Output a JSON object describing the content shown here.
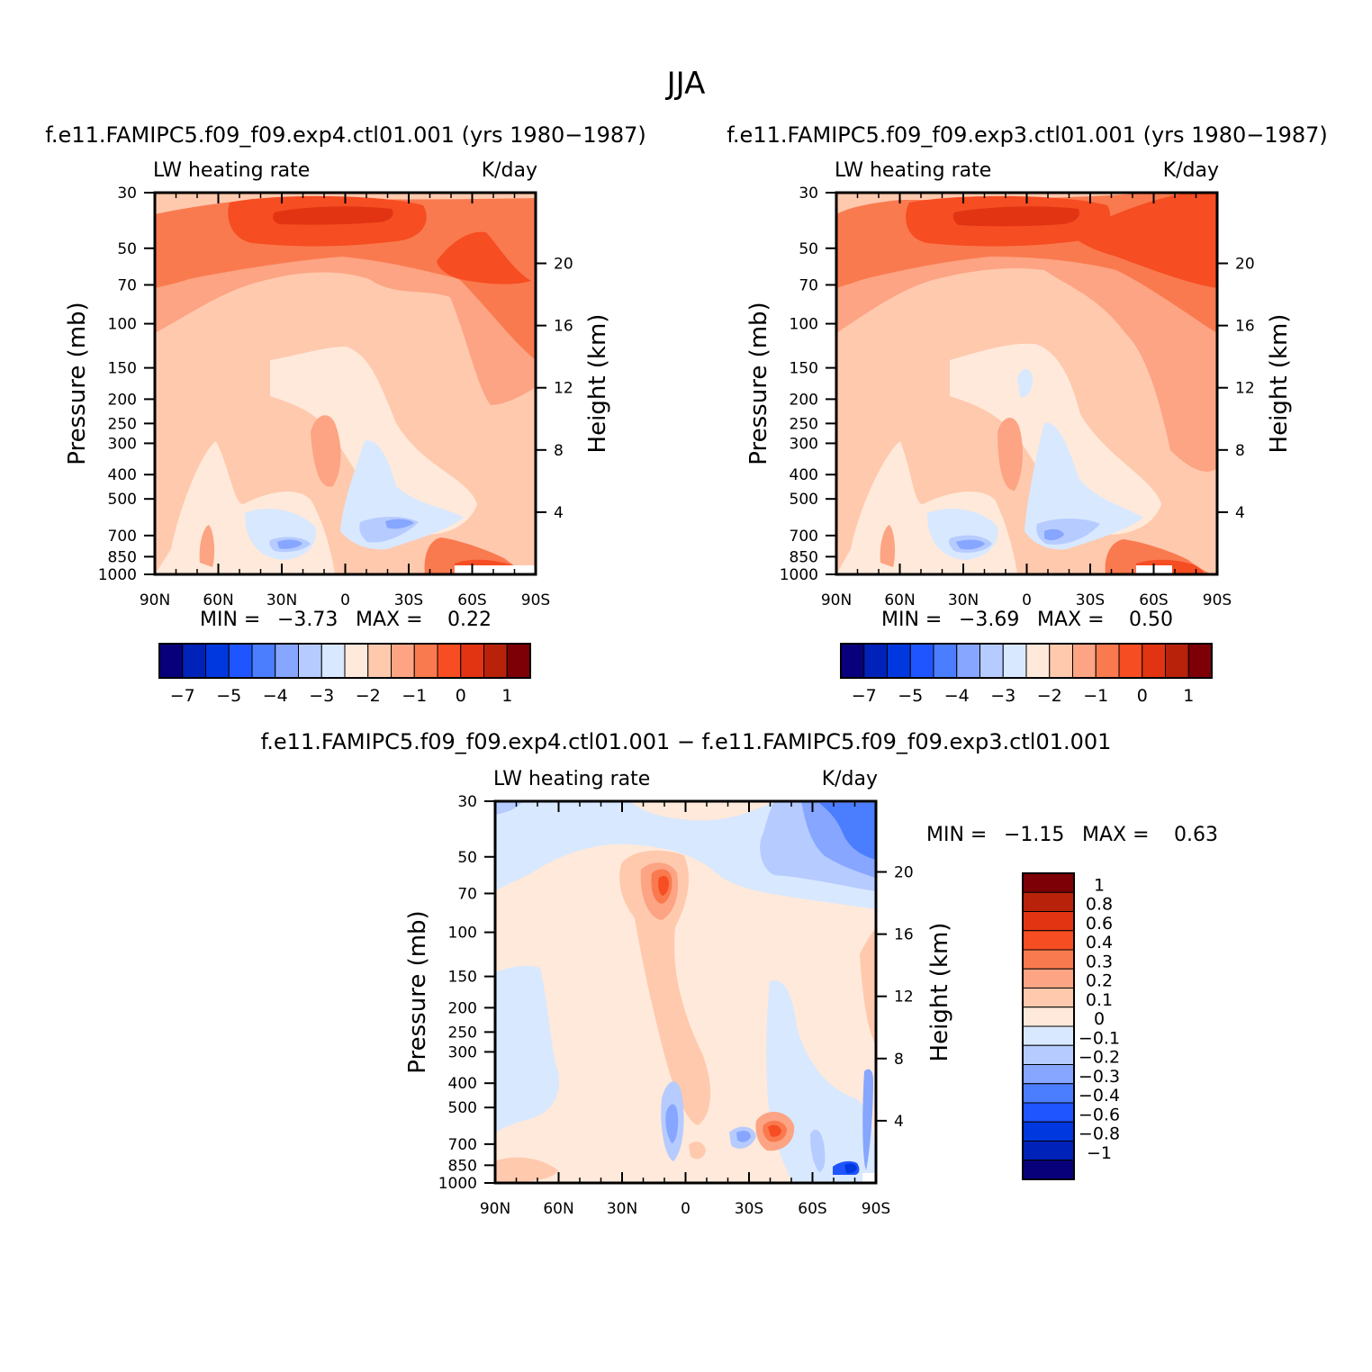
{
  "page": {
    "season_title": "JJA"
  },
  "palettes": {
    "full": [
      "#08007a",
      "#0022b8",
      "#0038e0",
      "#1f55ff",
      "#4b7dff",
      "#86a6ff",
      "#b6cbff",
      "#d8e8ff",
      "#ffe9da",
      "#ffc9ae",
      "#fca483",
      "#fa7a4f",
      "#f64d22",
      "#e23412",
      "#b8220b",
      "#7d0006"
    ],
    "diff": [
      "#08007a",
      "#0022b8",
      "#0038e0",
      "#1f55ff",
      "#4b7dff",
      "#86a6ff",
      "#b6cbff",
      "#d8e8ff",
      "#ffe9da",
      "#ffc9ae",
      "#fca483",
      "#fa7a4f",
      "#f64d22",
      "#e23412",
      "#b8220b",
      "#7d0006"
    ]
  },
  "chart_data": [
    {
      "id": "exp4",
      "type": "heatmap",
      "title": "f.e11.FAMIPC5.f09_f09.exp4.ctl01.001 (yrs 1980−1987)",
      "left_label": "LW heating rate",
      "right_label": "K/day",
      "xlabel": "",
      "ylabel": "Pressure (mb)",
      "y2label": "Height (km)",
      "x_ticks": [
        "90N",
        "60N",
        "30N",
        "0",
        "30S",
        "60S",
        "90S"
      ],
      "y_ticks": [
        "30",
        "50",
        "70",
        "100",
        "150",
        "200",
        "250",
        "300",
        "400",
        "500",
        "700",
        "850",
        "1000"
      ],
      "y2_ticks": [
        "20",
        "16",
        "12",
        "8",
        "4"
      ],
      "stats": {
        "min_label": "MIN =",
        "min": "−3.73",
        "max_label": "MAX =",
        "max": "0.22"
      },
      "colorbar_labels": [
        "−7",
        "−5",
        "−4",
        "−3",
        "−2",
        "−1",
        "0",
        "1"
      ]
    },
    {
      "id": "exp3",
      "type": "heatmap",
      "title": "f.e11.FAMIPC5.f09_f09.exp3.ctl01.001 (yrs 1980−1987)",
      "left_label": "LW heating rate",
      "right_label": "K/day",
      "xlabel": "",
      "ylabel": "Pressure (mb)",
      "y2label": "Height (km)",
      "x_ticks": [
        "90N",
        "60N",
        "30N",
        "0",
        "30S",
        "60S",
        "90S"
      ],
      "y_ticks": [
        "30",
        "50",
        "70",
        "100",
        "150",
        "200",
        "250",
        "300",
        "400",
        "500",
        "700",
        "850",
        "1000"
      ],
      "y2_ticks": [
        "20",
        "16",
        "12",
        "8",
        "4"
      ],
      "stats": {
        "min_label": "MIN =",
        "min": "−3.69",
        "max_label": "MAX =",
        "max": "0.50"
      },
      "colorbar_labels": [
        "−7",
        "−5",
        "−4",
        "−3",
        "−2",
        "−1",
        "0",
        "1"
      ]
    },
    {
      "id": "diff",
      "type": "heatmap",
      "title": "f.e11.FAMIPC5.f09_f09.exp4.ctl01.001 − f.e11.FAMIPC5.f09_f09.exp3.ctl01.001",
      "left_label": "LW heating rate",
      "right_label": "K/day",
      "xlabel": "",
      "ylabel": "Pressure (mb)",
      "y2label": "Height (km)",
      "x_ticks": [
        "90N",
        "60N",
        "30N",
        "0",
        "30S",
        "60S",
        "90S"
      ],
      "y_ticks": [
        "30",
        "50",
        "70",
        "100",
        "150",
        "200",
        "250",
        "300",
        "400",
        "500",
        "700",
        "850",
        "1000"
      ],
      "y2_ticks": [
        "20",
        "16",
        "12",
        "8",
        "4"
      ],
      "stats": {
        "min_label": "MIN =",
        "min": "−1.15",
        "max_label": "MAX =",
        "max": "0.63"
      },
      "colorbar_labels": [
        "1",
        "0.8",
        "0.6",
        "0.4",
        "0.3",
        "0.2",
        "0.1",
        "0",
        "−0.1",
        "−0.2",
        "−0.3",
        "−0.4",
        "−0.6",
        "−0.8",
        "−1"
      ]
    }
  ]
}
